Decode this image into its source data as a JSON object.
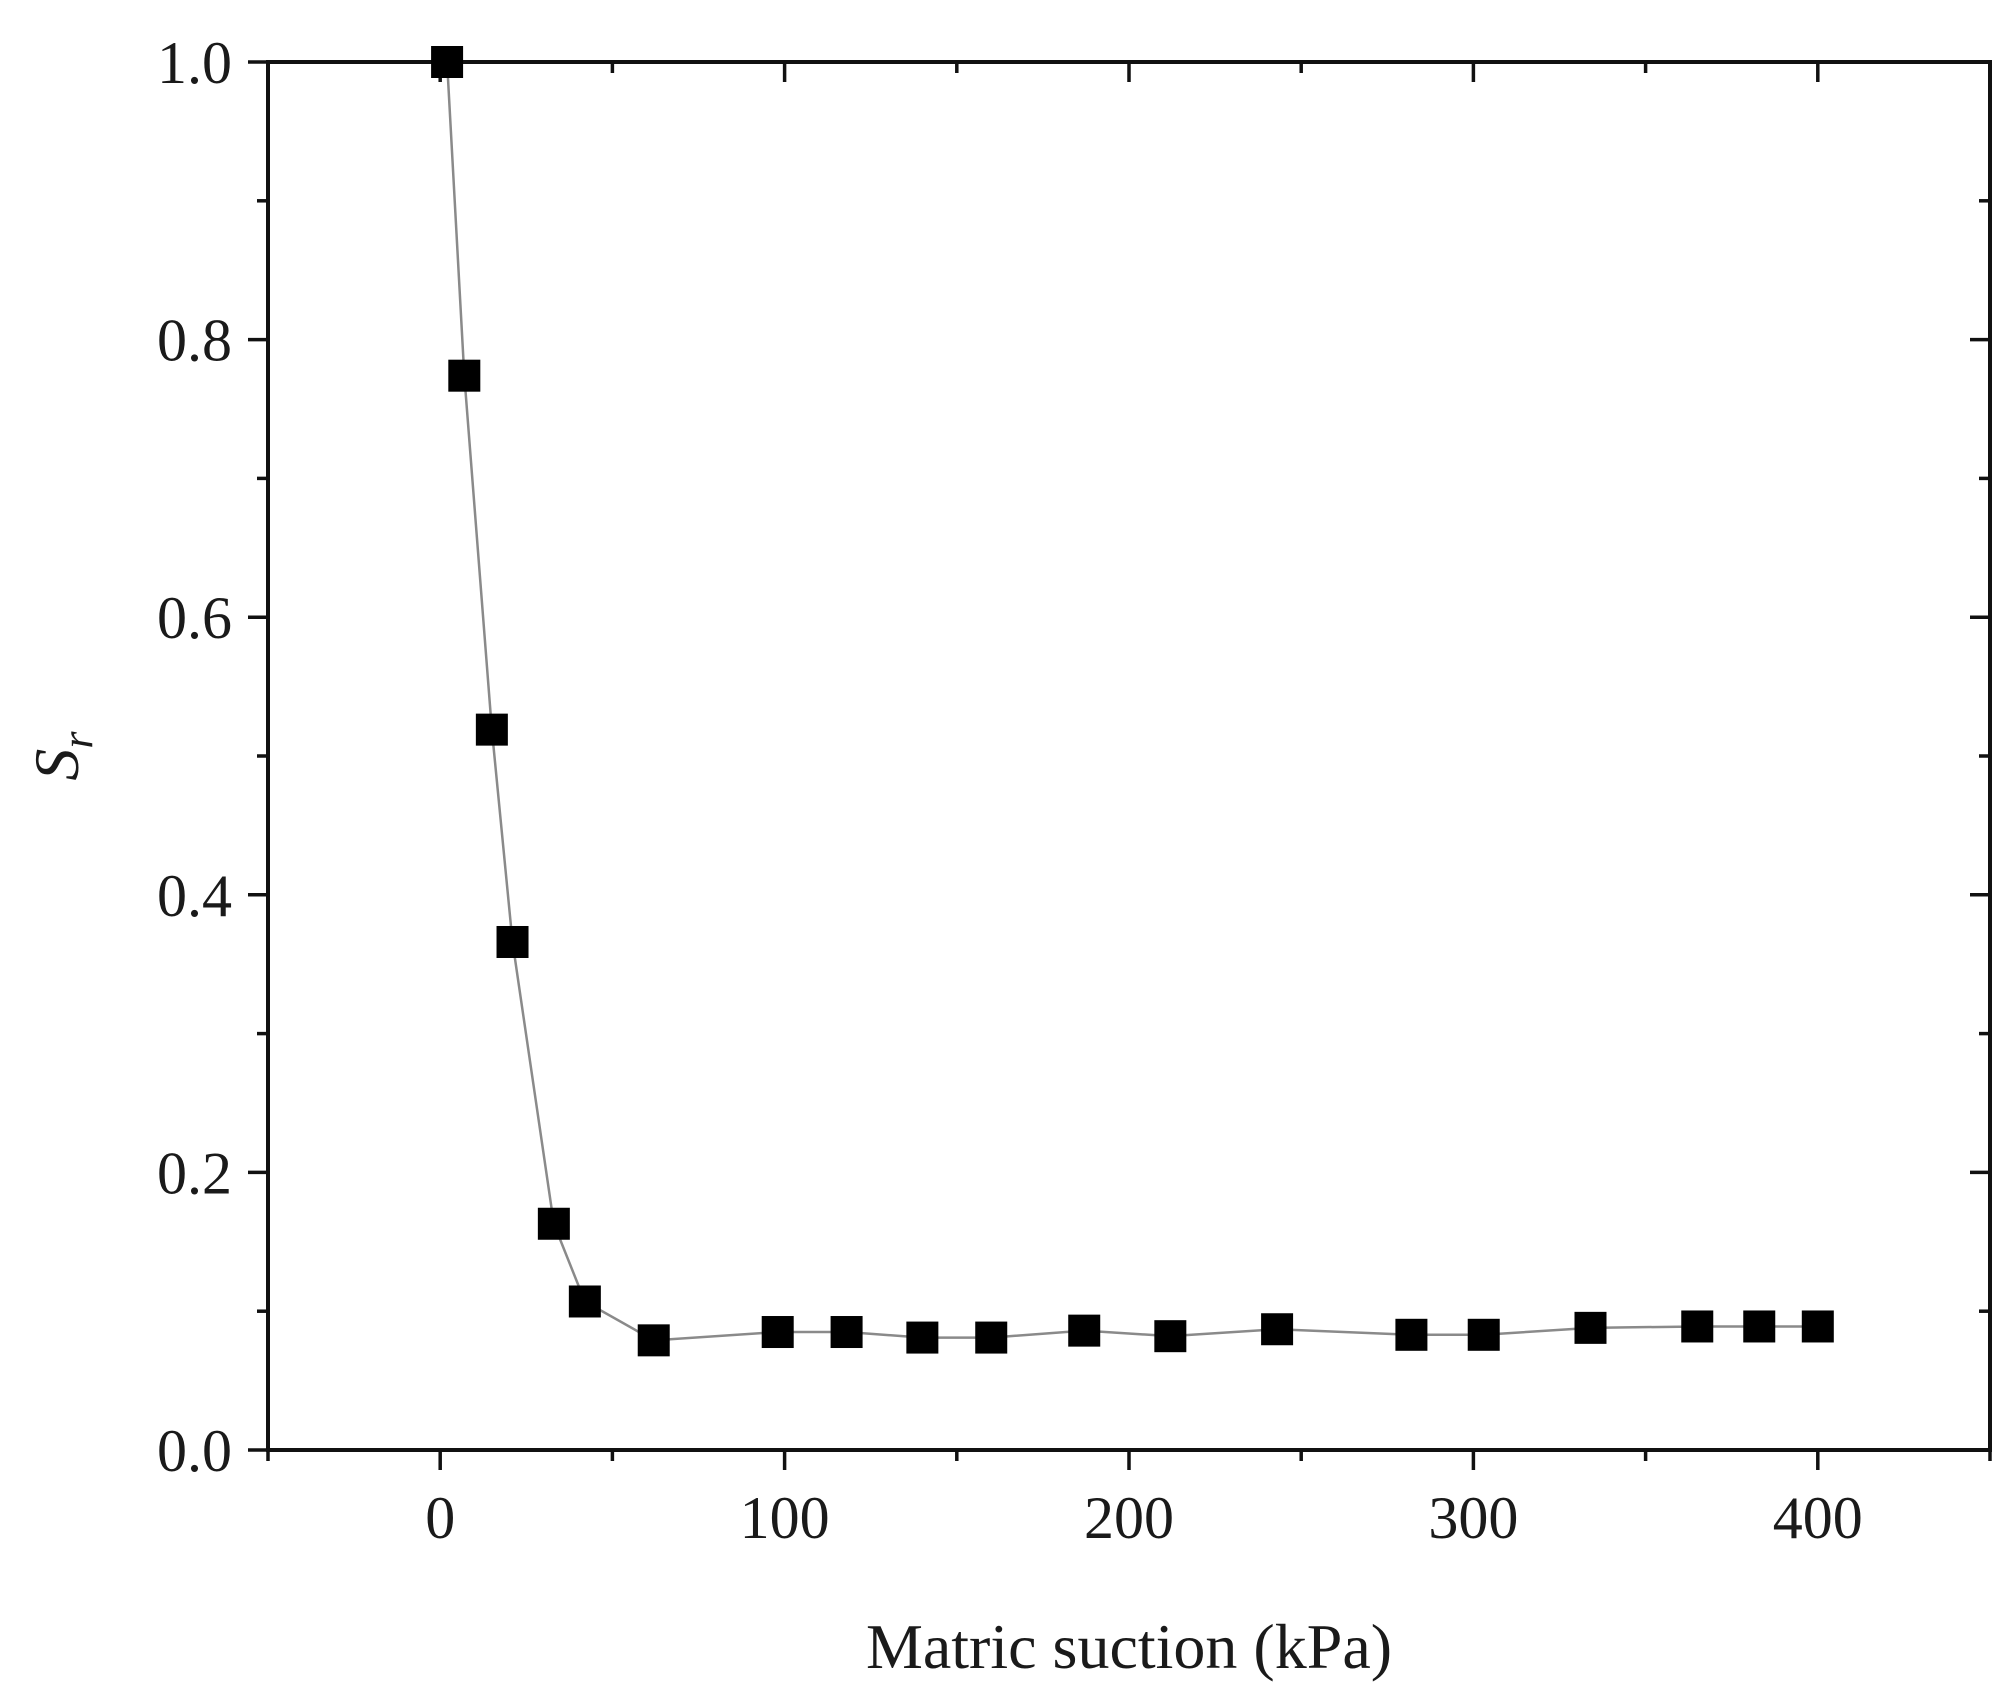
{
  "chart_data": {
    "type": "scatter",
    "title": "",
    "xlabel": "Matric suction (kPa)",
    "ylabel": {
      "base": "S",
      "subscript": "r"
    },
    "xlim": [
      -50,
      450
    ],
    "ylim": [
      0.0,
      1.0
    ],
    "x_ticks": [
      0,
      100,
      200,
      300,
      400
    ],
    "x_tick_labels": [
      "0",
      "100",
      "200",
      "300",
      "400"
    ],
    "x_minor_ticks": [
      -50,
      50,
      150,
      250,
      350,
      450
    ],
    "y_ticks": [
      0.0,
      0.2,
      0.4,
      0.6,
      0.8,
      1.0
    ],
    "y_tick_labels": [
      "0.0",
      "0.2",
      "0.4",
      "0.6",
      "0.8",
      "1.0"
    ],
    "y_minor_ticks": [
      0.1,
      0.3,
      0.5,
      0.7,
      0.9
    ],
    "grid": false,
    "legend": "none",
    "series": [
      {
        "marker": "square",
        "marker_color": "#000000",
        "line_color": "#8a8a8a",
        "connected": true,
        "points": [
          {
            "x": 2,
            "y": 1.0
          },
          {
            "x": 7,
            "y": 0.774
          },
          {
            "x": 15,
            "y": 0.519
          },
          {
            "x": 21,
            "y": 0.366
          },
          {
            "x": 33,
            "y": 0.163
          },
          {
            "x": 42,
            "y": 0.107
          },
          {
            "x": 62,
            "y": 0.079
          },
          {
            "x": 98,
            "y": 0.085
          },
          {
            "x": 118,
            "y": 0.085
          },
          {
            "x": 140,
            "y": 0.081
          },
          {
            "x": 160,
            "y": 0.081
          },
          {
            "x": 187,
            "y": 0.086
          },
          {
            "x": 212,
            "y": 0.082
          },
          {
            "x": 243,
            "y": 0.087
          },
          {
            "x": 282,
            "y": 0.083
          },
          {
            "x": 303,
            "y": 0.083
          },
          {
            "x": 334,
            "y": 0.088
          },
          {
            "x": 365,
            "y": 0.089
          },
          {
            "x": 383,
            "y": 0.089
          },
          {
            "x": 400,
            "y": 0.089
          }
        ]
      }
    ]
  }
}
